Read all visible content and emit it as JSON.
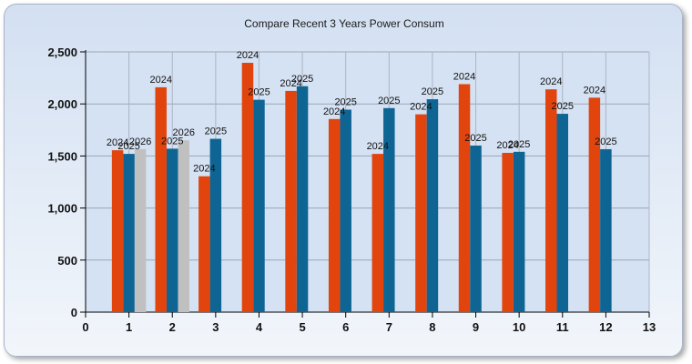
{
  "chart_data": {
    "type": "bar",
    "title": "Compare Recent 3 Years Power Consum",
    "xlabel": "",
    "ylabel": "",
    "xlim": [
      0,
      13
    ],
    "ylim": [
      0,
      2500
    ],
    "x_ticks": [
      0,
      1,
      2,
      3,
      4,
      5,
      6,
      7,
      8,
      9,
      10,
      11,
      12,
      13
    ],
    "y_ticks": [
      0,
      500,
      1000,
      1500,
      2000,
      2500
    ],
    "y_tick_labels": [
      "0",
      "500",
      "1,000",
      "1,500",
      "2,000",
      "2,500"
    ],
    "grid": true,
    "legend": "none",
    "series": [
      {
        "label": "2024",
        "color": "#e2440e",
        "x": [
          1,
          2,
          3,
          4,
          5,
          6,
          7,
          8,
          9,
          10,
          11,
          12
        ],
        "values": [
          1555,
          2160,
          1305,
          2395,
          2125,
          1855,
          1520,
          1900,
          2190,
          1530,
          2140,
          2060
        ]
      },
      {
        "label": "2025",
        "color": "#0e6594",
        "x": [
          1,
          2,
          3,
          4,
          5,
          6,
          7,
          8,
          9,
          10,
          11,
          12
        ],
        "values": [
          1520,
          1570,
          1665,
          2040,
          2170,
          1945,
          1960,
          2045,
          1600,
          1540,
          1905,
          1565
        ]
      },
      {
        "label": "2026",
        "color": "#c0c0c0",
        "x": [
          1,
          2
        ],
        "values": [
          1565,
          1650
        ]
      }
    ]
  }
}
